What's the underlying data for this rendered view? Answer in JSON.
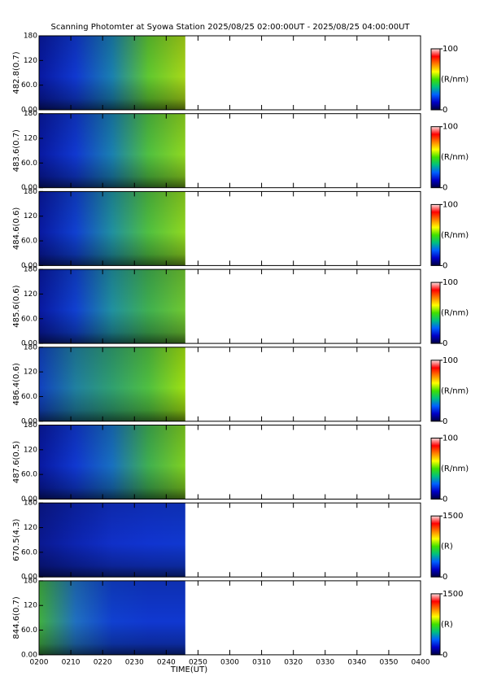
{
  "colormap": [
    "#000040",
    "#0000c8",
    "#0060ff",
    "#00c080",
    "#40e000",
    "#ffff00",
    "#ff8000",
    "#ff0000",
    "#ffe0e0"
  ],
  "chart_data": [
    {
      "type": "heatmap",
      "title": "Scanning Photomter at Syowa Station  2025/08/25 02:00:00UT - 2025/08/25 04:00:00UT",
      "ylabel": "482.8(0.7)",
      "ylim": [
        0,
        180
      ],
      "yticks": [
        {
          "value": 0,
          "label": "0.00"
        },
        {
          "value": 60,
          "label": "60.0"
        },
        120,
        180
      ],
      "xlim": [
        120,
        240
      ],
      "data_xlim": [
        120,
        166
      ],
      "heatmap_colors": [
        "#0818a0",
        "#1038d0",
        "#1a80b0",
        "#60c830",
        "#a8d818"
      ],
      "colorbar": {
        "lim": [
          0,
          100
        ],
        "ticks": [
          0,
          100
        ],
        "label": "(R/nm)"
      }
    },
    {
      "type": "heatmap",
      "ylabel": "483.6(0.7)",
      "ylim": [
        0,
        180
      ],
      "yticks": [
        {
          "value": 0,
          "label": "0.00"
        },
        {
          "value": 60,
          "label": "60.0"
        },
        120,
        180
      ],
      "xlim": [
        120,
        240
      ],
      "data_xlim": [
        120,
        166
      ],
      "heatmap_colors": [
        "#0818a0",
        "#1038d0",
        "#1a80b0",
        "#50c040",
        "#90d820"
      ],
      "colorbar": {
        "lim": [
          0,
          100
        ],
        "ticks": [
          0,
          100
        ],
        "label": "(R/nm)"
      }
    },
    {
      "type": "heatmap",
      "ylabel": "484.6(0.6)",
      "ylim": [
        0,
        180
      ],
      "yticks": [
        {
          "value": 0,
          "label": "0.00"
        },
        {
          "value": 60,
          "label": "60.0"
        },
        120,
        180
      ],
      "xlim": [
        120,
        240
      ],
      "data_xlim": [
        120,
        166
      ],
      "heatmap_colors": [
        "#0818a0",
        "#1040d0",
        "#2090a0",
        "#50c040",
        "#90d820"
      ],
      "colorbar": {
        "lim": [
          0,
          100
        ],
        "ticks": [
          0,
          100
        ],
        "label": "(R/nm)"
      }
    },
    {
      "type": "heatmap",
      "ylabel": "485.6(0.6)",
      "ylim": [
        0,
        180
      ],
      "yticks": [
        {
          "value": 0,
          "label": "0.00"
        },
        {
          "value": 60,
          "label": "60.0"
        },
        120,
        180
      ],
      "xlim": [
        120,
        240
      ],
      "data_xlim": [
        120,
        166
      ],
      "heatmap_colors": [
        "#0818a0",
        "#1040d0",
        "#2090a0",
        "#40b050",
        "#70c830"
      ],
      "colorbar": {
        "lim": [
          0,
          100
        ],
        "ticks": [
          0,
          100
        ],
        "label": "(R/nm)"
      }
    },
    {
      "type": "heatmap",
      "ylabel": "486.4(0.6)",
      "ylim": [
        0,
        180
      ],
      "yticks": [
        {
          "value": 0,
          "label": "0.00"
        },
        {
          "value": 60,
          "label": "60.0"
        },
        120,
        180
      ],
      "xlim": [
        120,
        240
      ],
      "data_xlim": [
        120,
        166
      ],
      "heatmap_colors": [
        "#1040c0",
        "#2080a0",
        "#30a070",
        "#50c040",
        "#a0e010"
      ],
      "colorbar": {
        "lim": [
          0,
          100
        ],
        "ticks": [
          0,
          100
        ],
        "label": "(R/nm)"
      }
    },
    {
      "type": "heatmap",
      "ylabel": "487.6(0.5)",
      "ylim": [
        0,
        180
      ],
      "yticks": [
        {
          "value": 0,
          "label": "0.00"
        },
        {
          "value": 60,
          "label": "60.0"
        },
        120,
        180
      ],
      "xlim": [
        120,
        240
      ],
      "data_xlim": [
        120,
        166
      ],
      "heatmap_colors": [
        "#0818a0",
        "#1038d0",
        "#1870c0",
        "#40b050",
        "#80d020"
      ],
      "colorbar": {
        "lim": [
          0,
          100
        ],
        "ticks": [
          0,
          100
        ],
        "label": "(R/nm)"
      }
    },
    {
      "type": "heatmap",
      "ylabel": "670.5(4.3)",
      "ylim": [
        0,
        180
      ],
      "yticks": [
        {
          "value": 0,
          "label": "0.00"
        },
        {
          "value": 60,
          "label": "60.0"
        },
        120,
        180
      ],
      "xlim": [
        120,
        240
      ],
      "data_xlim": [
        120,
        166
      ],
      "heatmap_colors": [
        "#0a1890",
        "#0c24b0",
        "#1030c8",
        "#1034d0",
        "#1038d0"
      ],
      "colorbar": {
        "lim": [
          0,
          1500
        ],
        "ticks": [
          0,
          1500
        ],
        "label": "(R)"
      }
    },
    {
      "type": "heatmap",
      "ylabel": "844.6(0.7)",
      "ylim": [
        0,
        180
      ],
      "yticks": [
        {
          "value": 0,
          "label": "0.00"
        },
        {
          "value": 60,
          "label": "60.0"
        },
        120,
        180
      ],
      "xlim": [
        120,
        240
      ],
      "data_xlim": [
        120,
        166
      ],
      "heatmap_colors": [
        "#40b040",
        "#2070c0",
        "#1040d0",
        "#1038d0",
        "#1038d0"
      ],
      "colorbar": {
        "lim": [
          0,
          1500
        ],
        "ticks": [
          0,
          1500
        ],
        "label": "(R)"
      },
      "xlabel": "TIME(UT)",
      "xticks": [
        {
          "value": 120,
          "label": "0200"
        },
        {
          "value": 130,
          "label": "0210"
        },
        {
          "value": 140,
          "label": "0220"
        },
        {
          "value": 150,
          "label": "0230"
        },
        {
          "value": 160,
          "label": "0240"
        },
        {
          "value": 170,
          "label": "0250"
        },
        {
          "value": 180,
          "label": "0300"
        },
        {
          "value": 190,
          "label": "0310"
        },
        {
          "value": 200,
          "label": "0320"
        },
        {
          "value": 210,
          "label": "0330"
        },
        {
          "value": 220,
          "label": "0340"
        },
        {
          "value": 230,
          "label": "0350"
        },
        {
          "value": 240,
          "label": "0400"
        }
      ]
    }
  ]
}
